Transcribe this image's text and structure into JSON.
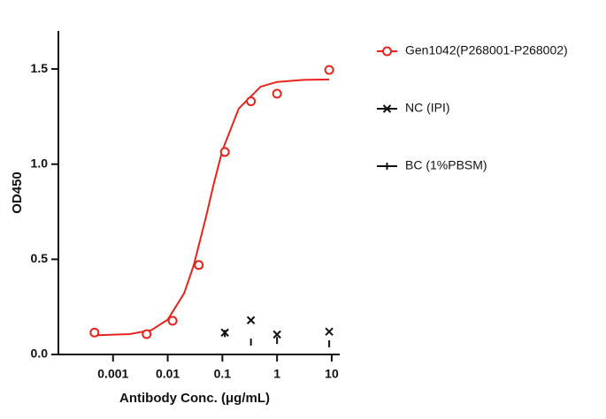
{
  "chart_data": {
    "type": "scatter",
    "xlabel": "Antibody Conc. (μg/mL)",
    "ylabel": "OD450",
    "xscale": "log",
    "xlim": [
      0.0001,
      13.5
    ],
    "xticks": [
      0.001,
      0.01,
      0.1,
      1,
      10
    ],
    "ylim": [
      0,
      1.7
    ],
    "yticks": [
      {
        "value": 0,
        "label": "0.0"
      },
      0.5,
      {
        "value": 1,
        "label": "1.0"
      },
      1.5
    ],
    "legend": "right",
    "series": [
      {
        "name": "Gen1042(P268001-P268002)",
        "color": "#e8231d",
        "marker": "circle",
        "x": [
          0.000457,
          0.00412,
          0.0123,
          0.037,
          0.111,
          0.333,
          1,
          9
        ],
        "values": [
          0.115,
          0.107,
          0.177,
          0.47,
          1.064,
          1.33,
          1.37,
          1.495
        ],
        "curve": {
          "x": [
            0.0005,
            0.002,
            0.005,
            0.01,
            0.02,
            0.03,
            0.05,
            0.07,
            0.1,
            0.2,
            0.5,
            1,
            3,
            9
          ],
          "values": [
            0.101,
            0.107,
            0.128,
            0.183,
            0.322,
            0.47,
            0.721,
            0.9,
            1.072,
            1.293,
            1.407,
            1.432,
            1.443,
            1.445
          ]
        }
      },
      {
        "name": "NC (IPI)",
        "color": "#111111",
        "marker": "x",
        "x": [
          0.111,
          0.333,
          1,
          9
        ],
        "values": [
          0.115,
          0.18,
          0.105,
          0.12
        ]
      },
      {
        "name": "BC (1%PBSM)",
        "color": "#111111",
        "marker": "tick",
        "x": [
          0.111,
          0.333,
          1,
          9
        ],
        "values": [
          0.11,
          0.065,
          0.074,
          0.056
        ]
      }
    ]
  }
}
